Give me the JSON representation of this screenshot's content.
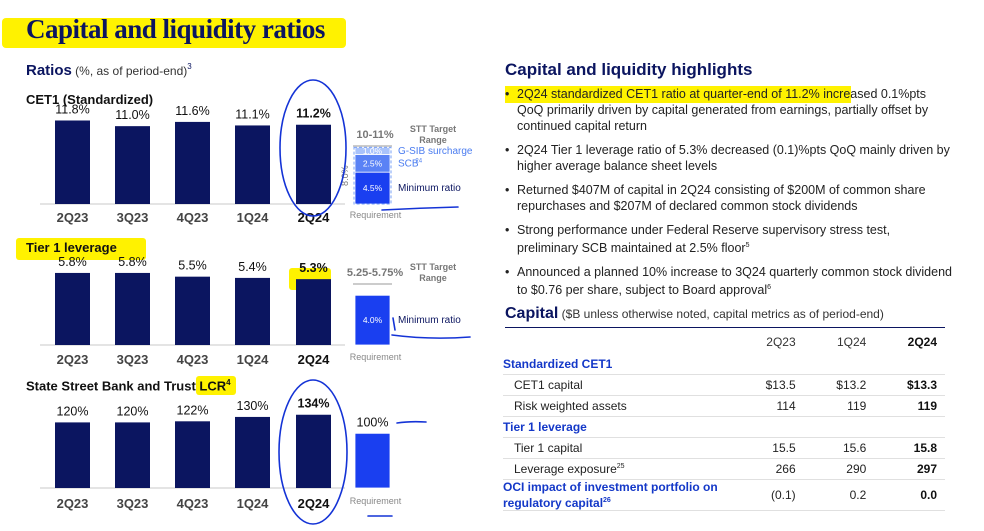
{
  "page_title": "Capital and liquidity ratios",
  "ratios_header": {
    "label": "Ratios",
    "sub": " (%, as of period-end)",
    "note": "3"
  },
  "chart_data": [
    {
      "type": "bar",
      "title": "CET1 (Standardized)",
      "title_note": "",
      "categories": [
        "2Q23",
        "3Q23",
        "4Q23",
        "1Q24",
        "2Q24"
      ],
      "values": [
        11.8,
        11.0,
        11.6,
        11.1,
        11.2
      ],
      "value_labels": [
        "11.8%",
        "11.0%",
        "11.6%",
        "11.1%",
        "11.2%"
      ],
      "ylim": [
        0,
        13
      ],
      "target_value": "10-11%",
      "target_label": "STT Target Range",
      "requirement": {
        "label": "Requirement",
        "total": 8.0,
        "total_label": "8.0%",
        "segments": [
          {
            "value": 4.5,
            "label": "4.5%",
            "name": "Minimum ratio",
            "color": "#1a3ff0"
          },
          {
            "value": 2.5,
            "label": "2.5%",
            "name": "SCB",
            "note": "24",
            "color": "#5a82f5"
          },
          {
            "value": 1.0,
            "label": "1.0%",
            "name": "G-SIB surcharge",
            "color": "#a9c3fb"
          }
        ]
      },
      "colors": {
        "bar": "#0b1560"
      }
    },
    {
      "type": "bar",
      "title": "Tier 1 leverage",
      "title_note": "",
      "categories": [
        "2Q23",
        "3Q23",
        "4Q23",
        "1Q24",
        "2Q24"
      ],
      "values": [
        5.8,
        5.8,
        5.5,
        5.4,
        5.3
      ],
      "value_labels": [
        "5.8%",
        "5.8%",
        "5.5%",
        "5.4%",
        "5.3%"
      ],
      "ylim": [
        0,
        6.6
      ],
      "target_value": "5.25-5.75%",
      "target_label": "STT Target Range",
      "requirement": {
        "label": "Requirement",
        "segments": [
          {
            "value": 4.0,
            "label": "4.0%",
            "name": "Minimum ratio",
            "color": "#1a3ff0"
          }
        ]
      },
      "colors": {
        "bar": "#0b1560"
      }
    },
    {
      "type": "bar",
      "title": "State Street Bank and Trust LCR",
      "title_note": "4",
      "categories": [
        "2Q23",
        "3Q23",
        "4Q23",
        "1Q24",
        "2Q24"
      ],
      "values": [
        120,
        120,
        122,
        130,
        134
      ],
      "value_labels": [
        "120%",
        "120%",
        "122%",
        "130%",
        "134%"
      ],
      "ylim": [
        0,
        150
      ],
      "requirement": {
        "label": "Requirement",
        "segments": [
          {
            "value": 100,
            "label": "100%",
            "name": "",
            "color": "#1a3ff0"
          }
        ]
      },
      "colors": {
        "bar": "#0b1560"
      }
    }
  ],
  "highlights": {
    "title": "Capital and liquidity highlights",
    "bullets": [
      {
        "text": "2Q24 standardized CET1 ratio at quarter-end of 11.2% increased 0.1%pts QoQ primarily driven by capital generated from earnings, partially offset by continued capital return",
        "note": ""
      },
      {
        "text": "2Q24 Tier 1 leverage ratio of 5.3% decreased (0.1)%pts QoQ mainly driven by higher average balance sheet levels",
        "note": ""
      },
      {
        "text": "Returned $407M of capital in 2Q24 consisting of $200M of common share repurchases and $207M of declared common stock dividends",
        "note": ""
      },
      {
        "text": "Strong performance under Federal Reserve supervisory stress test, preliminary SCB maintained at 2.5% floor",
        "note": "5"
      },
      {
        "text": "Announced a planned 10% increase to 3Q24 quarterly common stock dividend to $0.76 per share, subject to Board approval",
        "note": "6"
      }
    ]
  },
  "capital_table": {
    "title": "Capital",
    "subtitle": " ($B unless otherwise noted, capital metrics as of period-end)",
    "columns": [
      "2Q23",
      "1Q24",
      "2Q24"
    ],
    "groups": [
      {
        "name": "Standardized CET1",
        "rows": [
          {
            "label": "CET1 capital",
            "note": "",
            "values": [
              "$13.5",
              "$13.2",
              "$13.3"
            ]
          },
          {
            "label": "Risk weighted assets",
            "note": "",
            "values": [
              "114",
              "119",
              "119"
            ]
          }
        ]
      },
      {
        "name": "Tier 1 leverage",
        "rows": [
          {
            "label": "Tier 1 capital",
            "note": "",
            "values": [
              "15.5",
              "15.6",
              "15.8"
            ]
          },
          {
            "label": "Leverage exposure",
            "note": "25",
            "values": [
              "266",
              "290",
              "297"
            ]
          }
        ]
      }
    ],
    "oci": {
      "label_line1": "OCI impact of investment portfolio on",
      "label_line2": "regulatory capital",
      "note": "26",
      "values": [
        "(0.1)",
        "0.2",
        "0.0"
      ]
    }
  }
}
